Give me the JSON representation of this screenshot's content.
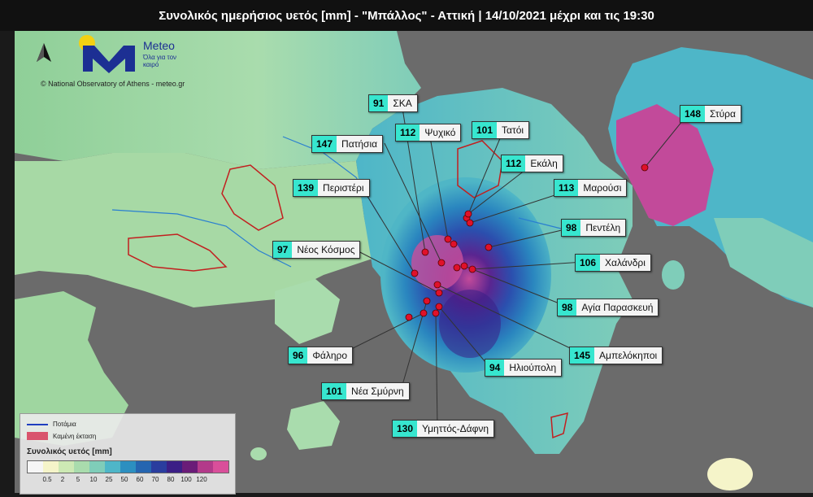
{
  "title": "Συνολικός ημερήσιος υετός [mm] - \"Μπάλλος\" - Αττική | 14/10/2021 μέχρι και τις 19:30",
  "brand": {
    "name": "Meteo",
    "tagline": "Όλα για τον καιρό",
    "copyright": "© National Observatory of Athens - meteo.gr"
  },
  "stations": [
    {
      "value": "91",
      "name": "ΣΚΑ"
    },
    {
      "value": "112",
      "name": "Ψυχικό"
    },
    {
      "value": "101",
      "name": "Τατόι"
    },
    {
      "value": "147",
      "name": "Πατήσια"
    },
    {
      "value": "112",
      "name": "Εκάλη"
    },
    {
      "value": "148",
      "name": "Στύρα"
    },
    {
      "value": "139",
      "name": "Περιστέρι"
    },
    {
      "value": "113",
      "name": "Μαρούσι"
    },
    {
      "value": "98",
      "name": "Πεντέλη"
    },
    {
      "value": "97",
      "name": "Νέος Κόσμος"
    },
    {
      "value": "106",
      "name": "Χαλάνδρι"
    },
    {
      "value": "98",
      "name": "Αγία Παρασκευή"
    },
    {
      "value": "145",
      "name": "Αμπελόκηποι"
    },
    {
      "value": "96",
      "name": "Φάληρο"
    },
    {
      "value": "94",
      "name": "Ηλιούπολη"
    },
    {
      "value": "101",
      "name": "Νέα Σμύρνη"
    },
    {
      "value": "130",
      "name": "Υμηττός-Δάφνη"
    }
  ],
  "legend": {
    "river": "Ποτάμια",
    "burned": "Καμένη έκταση",
    "title": "Συνολικός υετός [mm]",
    "ticks": [
      "0.5",
      "2",
      "5",
      "10",
      "25",
      "50",
      "60",
      "70",
      "80",
      "100",
      "120"
    ],
    "colors": [
      "#f6f6f6",
      "#f5f4c9",
      "#cde9b4",
      "#a9dcad",
      "#7fcdb9",
      "#4eb6c8",
      "#2c8fc0",
      "#2565b0",
      "#2a3d9e",
      "#3b1f86",
      "#6a1c78",
      "#b33a8a",
      "#d94f9a"
    ]
  }
}
